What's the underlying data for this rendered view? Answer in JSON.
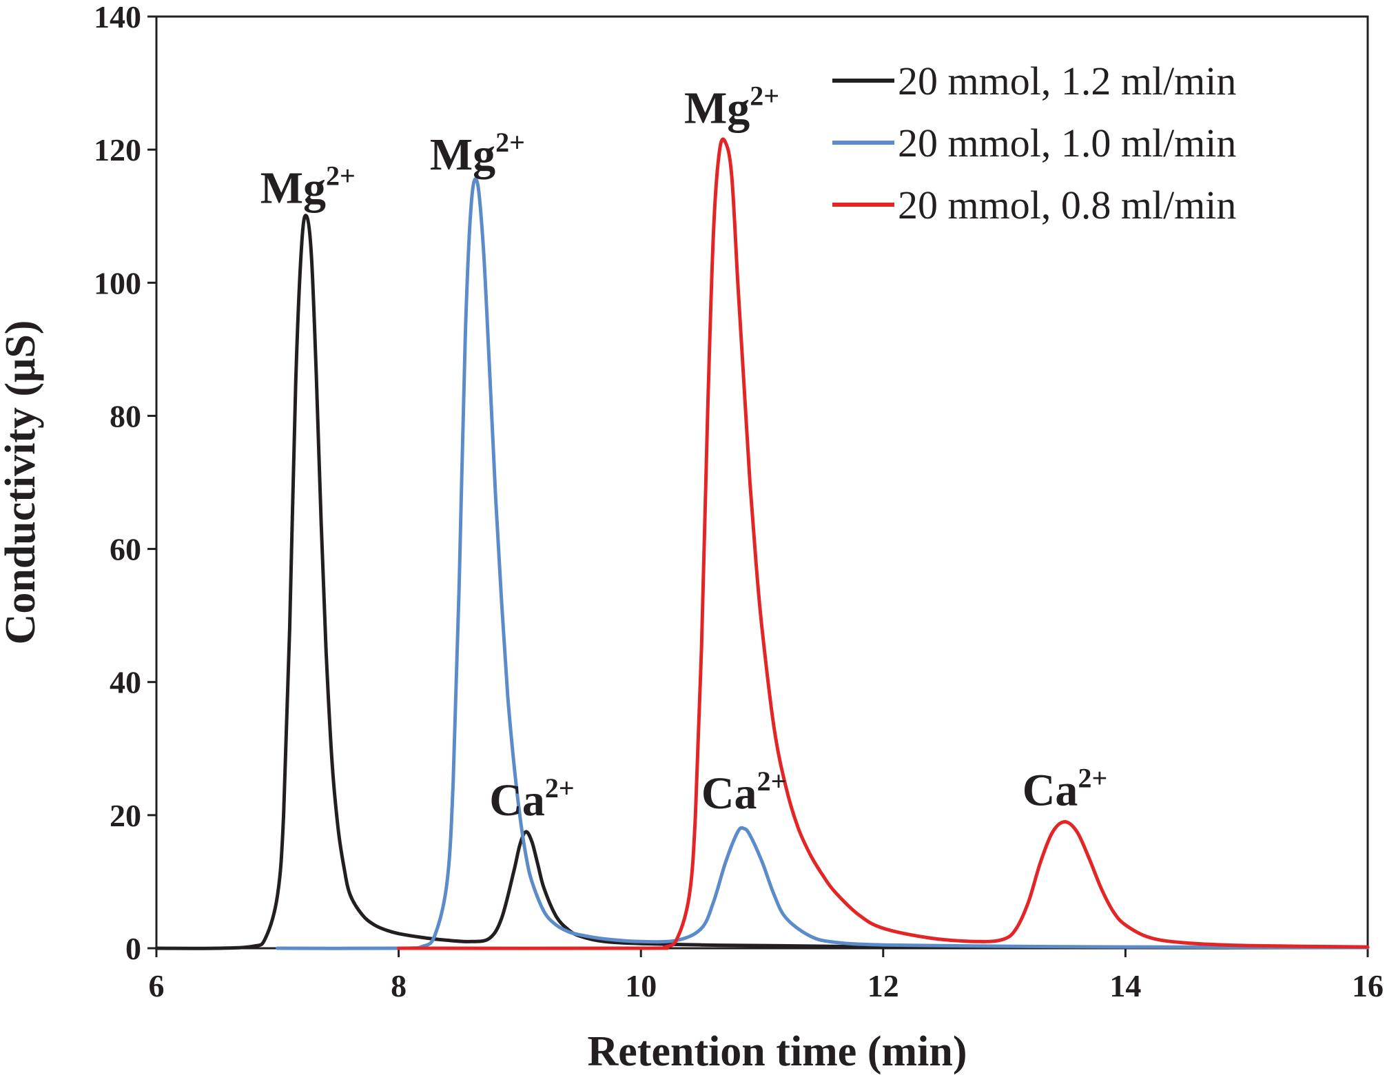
{
  "chart_data": {
    "type": "line",
    "title": "",
    "xlabel": "Retention time (min)",
    "ylabel": "Conductivity (μS)",
    "xlim": [
      6,
      16
    ],
    "ylim": [
      0,
      140
    ],
    "xticks": [
      6,
      8,
      10,
      12,
      14,
      16
    ],
    "yticks": [
      0,
      20,
      40,
      60,
      80,
      100,
      120,
      140
    ],
    "grid": false,
    "legend_position": "top-right",
    "series": [
      {
        "name": "20 mmol, 1.2 ml/min",
        "color": "#231f20",
        "x": [
          6.0,
          6.5,
          6.8,
          6.9,
          7.0,
          7.05,
          7.1,
          7.15,
          7.2,
          7.24,
          7.28,
          7.32,
          7.36,
          7.4,
          7.45,
          7.5,
          7.55,
          7.6,
          7.7,
          7.8,
          7.9,
          8.0,
          8.2,
          8.4,
          8.6,
          8.75,
          8.85,
          8.95,
          9.0,
          9.05,
          9.1,
          9.15,
          9.2,
          9.3,
          9.4,
          9.5,
          9.7,
          10.0,
          10.5,
          11.0,
          12.0,
          14.0,
          16.0
        ],
        "y": [
          0,
          0,
          0.3,
          1.5,
          8,
          20,
          48,
          85,
          106,
          110,
          104,
          86,
          64,
          45,
          28,
          18,
          12,
          8,
          5,
          3.5,
          2.7,
          2.2,
          1.6,
          1.2,
          1.0,
          1.5,
          4.5,
          11.5,
          15.5,
          17.5,
          16,
          12.5,
          9,
          4.8,
          2.8,
          1.8,
          1.0,
          0.7,
          0.5,
          0.4,
          0.2,
          0.1,
          0.1
        ]
      },
      {
        "name": "20 mmol, 1.0 ml/min",
        "color": "#5b8cc9",
        "x": [
          7.0,
          8.0,
          8.2,
          8.3,
          8.4,
          8.45,
          8.5,
          8.55,
          8.6,
          8.65,
          8.7,
          8.75,
          8.8,
          8.85,
          8.9,
          8.95,
          9.0,
          9.05,
          9.1,
          9.2,
          9.3,
          9.4,
          9.5,
          9.7,
          10.0,
          10.3,
          10.5,
          10.6,
          10.7,
          10.8,
          10.85,
          10.9,
          11.0,
          11.1,
          11.2,
          11.4,
          11.6,
          12.0,
          13.0,
          14.0,
          16.0
        ],
        "y": [
          0,
          0,
          0.3,
          2,
          10,
          25,
          55,
          92,
          112,
          115,
          105,
          87,
          68,
          52,
          38,
          28,
          20,
          14,
          10,
          5.5,
          3.5,
          2.5,
          2.0,
          1.4,
          1.0,
          1.2,
          3,
          7,
          13,
          17.5,
          18,
          17,
          13,
          8,
          4.5,
          1.8,
          0.9,
          0.5,
          0.3,
          0.2,
          0.1
        ]
      },
      {
        "name": "20 mmol, 0.8 ml/min",
        "color": "#e32526",
        "x": [
          8.0,
          10.0,
          10.2,
          10.3,
          10.4,
          10.45,
          10.5,
          10.55,
          10.6,
          10.65,
          10.7,
          10.75,
          10.8,
          10.85,
          10.9,
          10.95,
          11.0,
          11.1,
          11.2,
          11.3,
          11.4,
          11.5,
          11.6,
          11.8,
          12.0,
          12.4,
          12.8,
          13.0,
          13.1,
          13.2,
          13.3,
          13.4,
          13.5,
          13.6,
          13.7,
          13.8,
          13.9,
          14.0,
          14.2,
          14.5,
          15.0,
          16.0
        ],
        "y": [
          0,
          0,
          0.2,
          1.5,
          8,
          20,
          45,
          80,
          108,
          120,
          121,
          116,
          100,
          85,
          70,
          58,
          48,
          33,
          24,
          18,
          14,
          11,
          8.5,
          5,
          3,
          1.5,
          1.0,
          1.4,
          3,
          7,
          13,
          17.5,
          19,
          17.5,
          13.5,
          9,
          5.5,
          3.5,
          1.6,
          0.8,
          0.4,
          0.2
        ]
      }
    ],
    "annotations": [
      {
        "base": "Mg",
        "sup": "2+",
        "x": 7.25,
        "y": 112
      },
      {
        "base": "Mg",
        "sup": "2+",
        "x": 8.65,
        "y": 117
      },
      {
        "base": "Mg",
        "sup": "2+",
        "x": 10.75,
        "y": 124
      },
      {
        "base": "Ca",
        "sup": "2+",
        "x": 9.1,
        "y": 20
      },
      {
        "base": "Ca",
        "sup": "2+",
        "x": 10.85,
        "y": 21
      },
      {
        "base": "Ca",
        "sup": "2+",
        "x": 13.5,
        "y": 21.5
      }
    ]
  }
}
